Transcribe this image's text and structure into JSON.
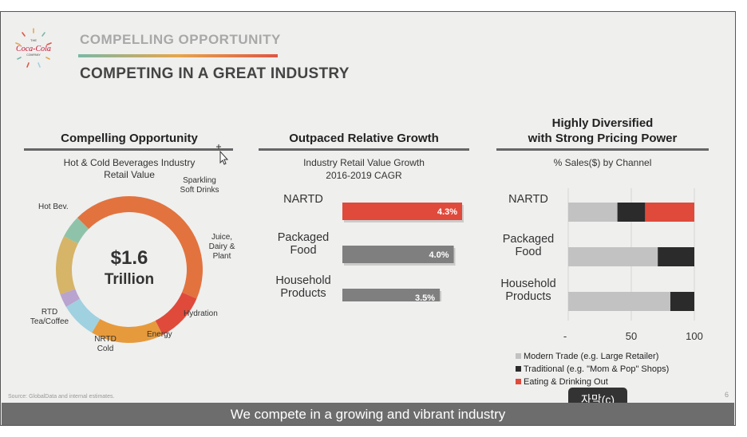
{
  "header": {
    "logo_text": "Coca-Cola",
    "logo_small_top": "THE",
    "logo_small_bottom": "COMPANY",
    "eyebrow": "COMPELLING OPPORTUNITY",
    "headline": "COMPETING IN A GREAT INDUSTRY"
  },
  "panels": {
    "left": {
      "title": "Compelling Opportunity",
      "subtitle_line1": "Hot & Cold Beverages Industry",
      "subtitle_line2": "Retail Value"
    },
    "middle": {
      "title": "Outpaced Relative Growth",
      "subtitle_line1": "Industry Retail Value Growth",
      "subtitle_line2": "2016-2019 CAGR"
    },
    "right": {
      "title_line1": "Highly Diversified",
      "title_line2": "with Strong Pricing Power",
      "subtitle": "% Sales($) by Channel"
    }
  },
  "colors": {
    "red": "#e04a3b",
    "orange": "#e79a3b",
    "donut_main": "#e2733f",
    "light_blue": "#9fd1e0",
    "lavender": "#b9a3cf",
    "tan": "#d6b468",
    "teal": "#8fc3a9",
    "gray_bar": "#7f7f7f",
    "modern": "#c2c2c2",
    "traditional": "#2b2b2b"
  },
  "chart_data": [
    {
      "type": "pie",
      "title": "Hot & Cold Beverages Industry Retail Value",
      "center_value": "$1.6",
      "center_unit": "Trillion",
      "segments": [
        {
          "name": "Hot Bev.",
          "share": 0.44,
          "label": "Hot Bev.",
          "color": "#e2733f"
        },
        {
          "name": "Sparkling Soft Drinks",
          "share": 0.11,
          "label1": "Sparkling",
          "label2": "Soft Drinks",
          "color": "#e04a3b"
        },
        {
          "name": "Juice, Dairy & Plant",
          "share": 0.16,
          "label1": "Juice,",
          "label2": "Dairy &",
          "label3": "Plant",
          "color": "#e79a3b"
        },
        {
          "name": "Hydration",
          "share": 0.08,
          "label": "Hydration",
          "color": "#9fd1e0"
        },
        {
          "name": "Energy",
          "share": 0.03,
          "label": "Energy",
          "color": "#b9a3cf"
        },
        {
          "name": "NRTD Cold",
          "share": 0.13,
          "label1": "NRTD",
          "label2": "Cold",
          "color": "#d6b468"
        },
        {
          "name": "RTD Tea/Coffee",
          "share": 0.05,
          "label1": "RTD",
          "label2": "Tea/Coffee",
          "color": "#8fc3a9"
        }
      ]
    },
    {
      "type": "bar",
      "title": "Industry Retail Value Growth 2016-2019 CAGR",
      "orientation": "horizontal",
      "categories": [
        "NARTD",
        "Packaged Food",
        "Household Products"
      ],
      "category_lines": [
        [
          "NARTD"
        ],
        [
          "Packaged",
          "Food"
        ],
        [
          "Household",
          "Products"
        ]
      ],
      "values": [
        4.3,
        4.0,
        3.5
      ],
      "labels": [
        "4.3%",
        "4.0%",
        "3.5%"
      ],
      "unit": "%"
    },
    {
      "type": "bar",
      "title": "% Sales($) by Channel",
      "orientation": "horizontal",
      "stacked": true,
      "categories": [
        "NARTD",
        "Packaged Food",
        "Household Products"
      ],
      "category_lines": [
        [
          "NARTD"
        ],
        [
          "Packaged",
          "Food"
        ],
        [
          "Household",
          "Products"
        ]
      ],
      "series": [
        {
          "name": "Modern Trade (e.g. Large Retailer)",
          "values": [
            39,
            71,
            81
          ]
        },
        {
          "name": "Traditional (e.g. \"Mom & Pop\" Shops)",
          "values": [
            22,
            29,
            19
          ]
        },
        {
          "name": "Eating & Drinking Out",
          "values": [
            39,
            0,
            0
          ]
        }
      ],
      "xlim": [
        0,
        100
      ],
      "xticks": [
        "-",
        "50",
        "100"
      ]
    }
  ],
  "footer": {
    "source": "Source: GlobalData and internal estimates.",
    "page_number": "6",
    "caption": "We compete in a growing and vibrant industry",
    "subtitle_tag": "자막(c)"
  }
}
